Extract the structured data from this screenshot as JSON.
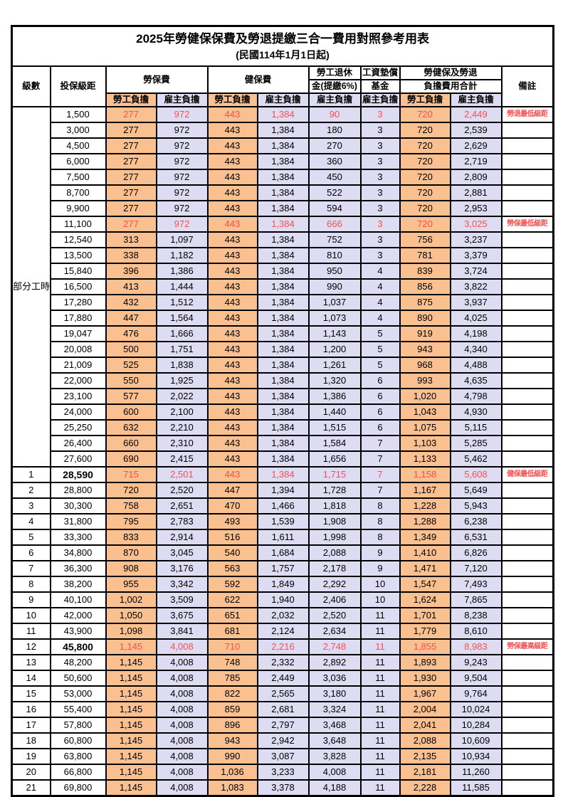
{
  "title": "2025年勞健保保費及勞退提繳三合一費用對照參考用表",
  "subtitle": "(民國114年1月1日起)",
  "colors": {
    "employee_column_bg": "#FAC090",
    "employer_column_bg": "#DEDCF2",
    "highlight_text": "#FF4D4D",
    "border": "#000000"
  },
  "header": {
    "level": "級數",
    "bracket": "投保級距",
    "labor_fee": "勞保費",
    "health_fee": "健保費",
    "pension_top": "勞工退休",
    "pension_bottom": "金(提繳6%)",
    "wage_fund_top": "工資墊償",
    "wage_fund_bottom": "基金",
    "total_top": "勞健保及勞退",
    "total_bottom": "負擔費用合計",
    "remark": "備註",
    "employee": "勞工負擔",
    "employer": "雇主負擔"
  },
  "table": {
    "part_time_label": "部分工時",
    "part_time_rowspan": 23,
    "value_columns": [
      "勞保費-勞工負擔",
      "勞保費-雇主負擔",
      "健保費-勞工負擔",
      "健保費-雇主負擔",
      "勞工退休金-雇主負擔",
      "工資墊償基金-雇主負擔",
      "合計-勞工負擔",
      "合計-雇主負擔"
    ],
    "rows": [
      {
        "level": "",
        "bracket": "1,500",
        "values": [
          "277",
          "972",
          "443",
          "1,384",
          "90",
          "3",
          "720",
          "2,449"
        ],
        "remark": "勞退最低級距",
        "highlight": true,
        "bold": false
      },
      {
        "level": "",
        "bracket": "3,000",
        "values": [
          "277",
          "972",
          "443",
          "1,384",
          "180",
          "3",
          "720",
          "2,539"
        ],
        "remark": "",
        "highlight": false,
        "bold": false
      },
      {
        "level": "",
        "bracket": "4,500",
        "values": [
          "277",
          "972",
          "443",
          "1,384",
          "270",
          "3",
          "720",
          "2,629"
        ],
        "remark": "",
        "highlight": false,
        "bold": false
      },
      {
        "level": "",
        "bracket": "6,000",
        "values": [
          "277",
          "972",
          "443",
          "1,384",
          "360",
          "3",
          "720",
          "2,719"
        ],
        "remark": "",
        "highlight": false,
        "bold": false
      },
      {
        "level": "",
        "bracket": "7,500",
        "values": [
          "277",
          "972",
          "443",
          "1,384",
          "450",
          "3",
          "720",
          "2,809"
        ],
        "remark": "",
        "highlight": false,
        "bold": false
      },
      {
        "level": "",
        "bracket": "8,700",
        "values": [
          "277",
          "972",
          "443",
          "1,384",
          "522",
          "3",
          "720",
          "2,881"
        ],
        "remark": "",
        "highlight": false,
        "bold": false
      },
      {
        "level": "",
        "bracket": "9,900",
        "values": [
          "277",
          "972",
          "443",
          "1,384",
          "594",
          "3",
          "720",
          "2,953"
        ],
        "remark": "",
        "highlight": false,
        "bold": false
      },
      {
        "level": "",
        "bracket": "11,100",
        "values": [
          "277",
          "972",
          "443",
          "1,384",
          "666",
          "3",
          "720",
          "3,025"
        ],
        "remark": "勞保最低級距",
        "highlight": true,
        "bold": false
      },
      {
        "level": "",
        "bracket": "12,540",
        "values": [
          "313",
          "1,097",
          "443",
          "1,384",
          "752",
          "3",
          "756",
          "3,237"
        ],
        "remark": "",
        "highlight": false,
        "bold": false
      },
      {
        "level": "",
        "bracket": "13,500",
        "values": [
          "338",
          "1,182",
          "443",
          "1,384",
          "810",
          "3",
          "781",
          "3,379"
        ],
        "remark": "",
        "highlight": false,
        "bold": false
      },
      {
        "level": "",
        "bracket": "15,840",
        "values": [
          "396",
          "1,386",
          "443",
          "1,384",
          "950",
          "4",
          "839",
          "3,724"
        ],
        "remark": "",
        "highlight": false,
        "bold": false
      },
      {
        "level": "",
        "bracket": "16,500",
        "values": [
          "413",
          "1,444",
          "443",
          "1,384",
          "990",
          "4",
          "856",
          "3,822"
        ],
        "remark": "",
        "highlight": false,
        "bold": false
      },
      {
        "level": "",
        "bracket": "17,280",
        "values": [
          "432",
          "1,512",
          "443",
          "1,384",
          "1,037",
          "4",
          "875",
          "3,937"
        ],
        "remark": "",
        "highlight": false,
        "bold": false
      },
      {
        "level": "",
        "bracket": "17,880",
        "values": [
          "447",
          "1,564",
          "443",
          "1,384",
          "1,073",
          "4",
          "890",
          "4,025"
        ],
        "remark": "",
        "highlight": false,
        "bold": false
      },
      {
        "level": "",
        "bracket": "19,047",
        "values": [
          "476",
          "1,666",
          "443",
          "1,384",
          "1,143",
          "5",
          "919",
          "4,198"
        ],
        "remark": "",
        "highlight": false,
        "bold": false
      },
      {
        "level": "",
        "bracket": "20,008",
        "values": [
          "500",
          "1,751",
          "443",
          "1,384",
          "1,200",
          "5",
          "943",
          "4,340"
        ],
        "remark": "",
        "highlight": false,
        "bold": false
      },
      {
        "level": "",
        "bracket": "21,009",
        "values": [
          "525",
          "1,838",
          "443",
          "1,384",
          "1,261",
          "5",
          "968",
          "4,488"
        ],
        "remark": "",
        "highlight": false,
        "bold": false
      },
      {
        "level": "",
        "bracket": "22,000",
        "values": [
          "550",
          "1,925",
          "443",
          "1,384",
          "1,320",
          "6",
          "993",
          "4,635"
        ],
        "remark": "",
        "highlight": false,
        "bold": false
      },
      {
        "level": "",
        "bracket": "23,100",
        "values": [
          "577",
          "2,022",
          "443",
          "1,384",
          "1,386",
          "6",
          "1,020",
          "4,798"
        ],
        "remark": "",
        "highlight": false,
        "bold": false
      },
      {
        "level": "",
        "bracket": "24,000",
        "values": [
          "600",
          "2,100",
          "443",
          "1,384",
          "1,440",
          "6",
          "1,043",
          "4,930"
        ],
        "remark": "",
        "highlight": false,
        "bold": false
      },
      {
        "level": "",
        "bracket": "25,250",
        "values": [
          "632",
          "2,210",
          "443",
          "1,384",
          "1,515",
          "6",
          "1,075",
          "5,115"
        ],
        "remark": "",
        "highlight": false,
        "bold": false
      },
      {
        "level": "",
        "bracket": "26,400",
        "values": [
          "660",
          "2,310",
          "443",
          "1,384",
          "1,584",
          "7",
          "1,103",
          "5,285"
        ],
        "remark": "",
        "highlight": false,
        "bold": false
      },
      {
        "level": "",
        "bracket": "27,600",
        "values": [
          "690",
          "2,415",
          "443",
          "1,384",
          "1,656",
          "7",
          "1,133",
          "5,462"
        ],
        "remark": "",
        "highlight": false,
        "bold": false
      },
      {
        "level": "1",
        "bracket": "28,590",
        "values": [
          "715",
          "2,501",
          "443",
          "1,384",
          "1,715",
          "7",
          "1,158",
          "5,608"
        ],
        "remark": "健保最低級距",
        "highlight": true,
        "bold": true
      },
      {
        "level": "2",
        "bracket": "28,800",
        "values": [
          "720",
          "2,520",
          "447",
          "1,394",
          "1,728",
          "7",
          "1,167",
          "5,649"
        ],
        "remark": "",
        "highlight": false,
        "bold": false
      },
      {
        "level": "3",
        "bracket": "30,300",
        "values": [
          "758",
          "2,651",
          "470",
          "1,466",
          "1,818",
          "8",
          "1,228",
          "5,943"
        ],
        "remark": "",
        "highlight": false,
        "bold": false
      },
      {
        "level": "4",
        "bracket": "31,800",
        "values": [
          "795",
          "2,783",
          "493",
          "1,539",
          "1,908",
          "8",
          "1,288",
          "6,238"
        ],
        "remark": "",
        "highlight": false,
        "bold": false
      },
      {
        "level": "5",
        "bracket": "33,300",
        "values": [
          "833",
          "2,914",
          "516",
          "1,611",
          "1,998",
          "8",
          "1,349",
          "6,531"
        ],
        "remark": "",
        "highlight": false,
        "bold": false
      },
      {
        "level": "6",
        "bracket": "34,800",
        "values": [
          "870",
          "3,045",
          "540",
          "1,684",
          "2,088",
          "9",
          "1,410",
          "6,826"
        ],
        "remark": "",
        "highlight": false,
        "bold": false
      },
      {
        "level": "7",
        "bracket": "36,300",
        "values": [
          "908",
          "3,176",
          "563",
          "1,757",
          "2,178",
          "9",
          "1,471",
          "7,120"
        ],
        "remark": "",
        "highlight": false,
        "bold": false
      },
      {
        "level": "8",
        "bracket": "38,200",
        "values": [
          "955",
          "3,342",
          "592",
          "1,849",
          "2,292",
          "10",
          "1,547",
          "7,493"
        ],
        "remark": "",
        "highlight": false,
        "bold": false
      },
      {
        "level": "9",
        "bracket": "40,100",
        "values": [
          "1,002",
          "3,509",
          "622",
          "1,940",
          "2,406",
          "10",
          "1,624",
          "7,865"
        ],
        "remark": "",
        "highlight": false,
        "bold": false
      },
      {
        "level": "10",
        "bracket": "42,000",
        "values": [
          "1,050",
          "3,675",
          "651",
          "2,032",
          "2,520",
          "11",
          "1,701",
          "8,238"
        ],
        "remark": "",
        "highlight": false,
        "bold": false
      },
      {
        "level": "11",
        "bracket": "43,900",
        "values": [
          "1,098",
          "3,841",
          "681",
          "2,124",
          "2,634",
          "11",
          "1,779",
          "8,610"
        ],
        "remark": "",
        "highlight": false,
        "bold": false
      },
      {
        "level": "12",
        "bracket": "45,800",
        "values": [
          "1,145",
          "4,008",
          "710",
          "2,216",
          "2,748",
          "11",
          "1,855",
          "8,983"
        ],
        "remark": "勞保最高級距",
        "highlight": true,
        "bold": true
      },
      {
        "level": "13",
        "bracket": "48,200",
        "values": [
          "1,145",
          "4,008",
          "748",
          "2,332",
          "2,892",
          "11",
          "1,893",
          "9,243"
        ],
        "remark": "",
        "highlight": false,
        "bold": false
      },
      {
        "level": "14",
        "bracket": "50,600",
        "values": [
          "1,145",
          "4,008",
          "785",
          "2,449",
          "3,036",
          "11",
          "1,930",
          "9,504"
        ],
        "remark": "",
        "highlight": false,
        "bold": false
      },
      {
        "level": "15",
        "bracket": "53,000",
        "values": [
          "1,145",
          "4,008",
          "822",
          "2,565",
          "3,180",
          "11",
          "1,967",
          "9,764"
        ],
        "remark": "",
        "highlight": false,
        "bold": false
      },
      {
        "level": "16",
        "bracket": "55,400",
        "values": [
          "1,145",
          "4,008",
          "859",
          "2,681",
          "3,324",
          "11",
          "2,004",
          "10,024"
        ],
        "remark": "",
        "highlight": false,
        "bold": false
      },
      {
        "level": "17",
        "bracket": "57,800",
        "values": [
          "1,145",
          "4,008",
          "896",
          "2,797",
          "3,468",
          "11",
          "2,041",
          "10,284"
        ],
        "remark": "",
        "highlight": false,
        "bold": false
      },
      {
        "level": "18",
        "bracket": "60,800",
        "values": [
          "1,145",
          "4,008",
          "943",
          "2,942",
          "3,648",
          "11",
          "2,088",
          "10,609"
        ],
        "remark": "",
        "highlight": false,
        "bold": false
      },
      {
        "level": "19",
        "bracket": "63,800",
        "values": [
          "1,145",
          "4,008",
          "990",
          "3,087",
          "3,828",
          "11",
          "2,135",
          "10,934"
        ],
        "remark": "",
        "highlight": false,
        "bold": false
      },
      {
        "level": "20",
        "bracket": "66,800",
        "values": [
          "1,145",
          "4,008",
          "1,036",
          "3,233",
          "4,008",
          "11",
          "2,181",
          "11,260"
        ],
        "remark": "",
        "highlight": false,
        "bold": false
      },
      {
        "level": "21",
        "bracket": "69,800",
        "values": [
          "1,145",
          "4,008",
          "1,083",
          "3,378",
          "4,188",
          "11",
          "2,228",
          "11,585"
        ],
        "remark": "",
        "highlight": false,
        "bold": false
      }
    ]
  }
}
